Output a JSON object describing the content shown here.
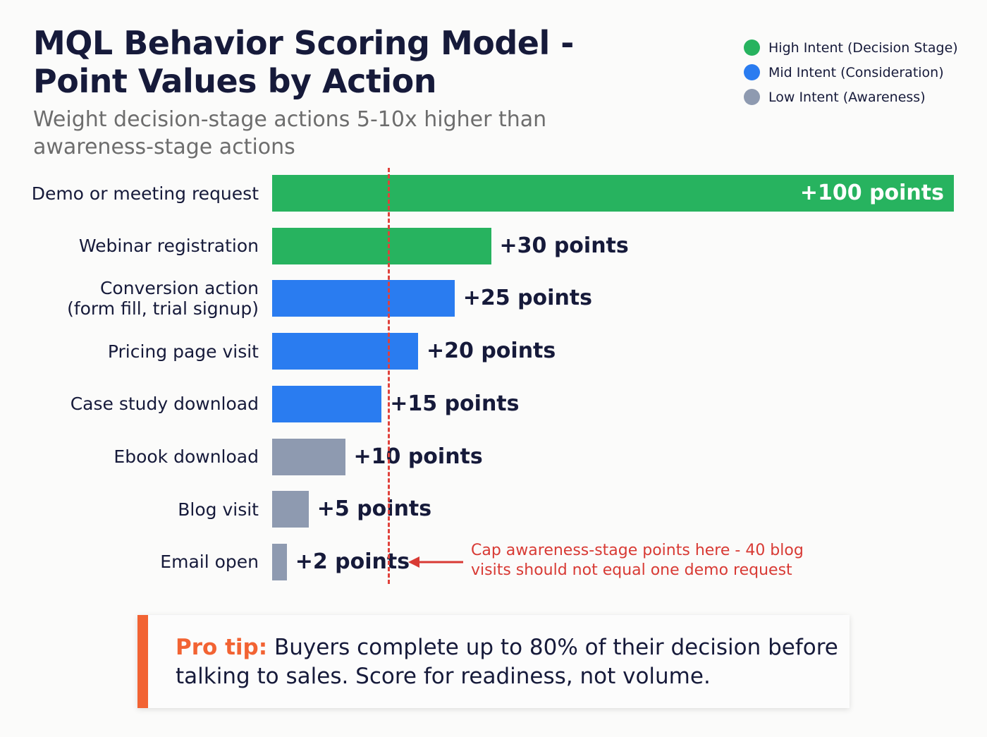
{
  "chart_data": {
    "type": "bar",
    "orientation": "horizontal",
    "title": "MQL Behavior Scoring Model - Point Values by Action",
    "subtitle": "Weight decision-stage actions 5-10x higher than awareness-stage actions",
    "categories": [
      "Demo or meeting request",
      "Webinar registration",
      "Conversion action\n(form fill, trial signup)",
      "Pricing page visit",
      "Case study download",
      "Ebook download",
      "Blog visit",
      "Email open"
    ],
    "values": [
      100,
      30,
      25,
      20,
      15,
      10,
      5,
      2
    ],
    "value_labels": [
      "+100 points",
      "+30 points",
      "+25 points",
      "+20 points",
      "+15 points",
      "+10 points",
      "+5 points",
      "+2 points"
    ],
    "intent": [
      "high",
      "high",
      "mid",
      "mid",
      "mid",
      "low",
      "low",
      "low"
    ],
    "legend": [
      {
        "key": "high",
        "label": "High Intent (Decision Stage)",
        "color": "#27b35f"
      },
      {
        "key": "mid",
        "label": "Mid Intent (Consideration)",
        "color": "#2a7cf0"
      },
      {
        "key": "low",
        "label": "Low Intent (Awareness)",
        "color": "#8e9ab0"
      }
    ],
    "legend_position": "top-right",
    "grid": false,
    "annotation": {
      "text": "Cap awareness-stage points here - 40 blog visits should not equal one demo request",
      "color": "#d83a34"
    }
  },
  "tip": {
    "label": "Pro tip:",
    "text": " Buyers complete up to 80% of their decision before talking to sales. Score for readiness, not volume.",
    "accent": "#f26333"
  }
}
